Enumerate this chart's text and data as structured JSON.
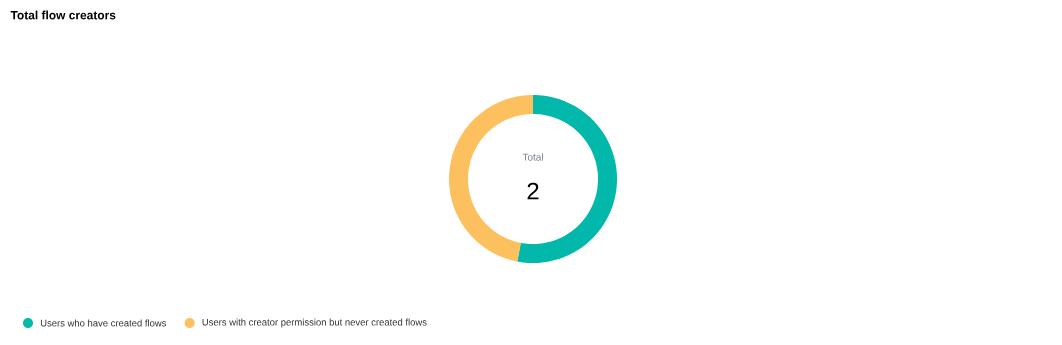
{
  "chart_data": {
    "type": "donut",
    "title": "Total flow creators",
    "categories": [
      "Users who have created flows",
      "Users with creator permission but never created flows"
    ],
    "values": [
      53,
      47
    ],
    "colors": [
      "#01b8aa",
      "#fdc05e"
    ],
    "annotations": [
      "Total",
      "2"
    ],
    "legend": "bottom left"
  }
}
